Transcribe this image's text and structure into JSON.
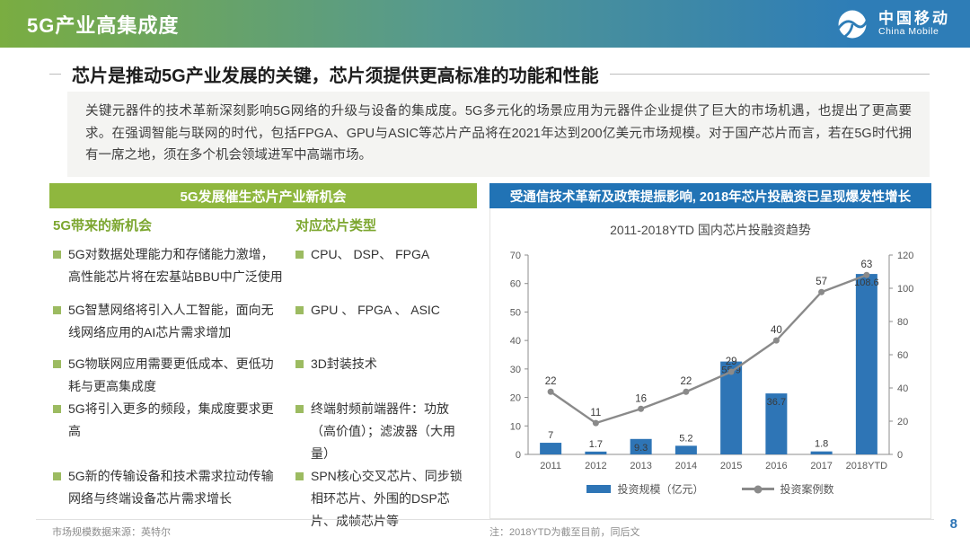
{
  "header": {
    "title": "5G产业高集成度",
    "logo": {
      "cn": "中国移动",
      "en": "China Mobile"
    }
  },
  "key_message": {
    "heading": "芯片是推动5G产业发展的关键，芯片须提供更高标准的功能和性能",
    "body": "关键元器件的技术革新深刻影响5G网络的升级与设备的集成度。5G多元化的场景应用为元器件企业提供了巨大的市场机遇，也提出了更高要求。在强调智能与联网的时代，包括FPGA、GPU与ASIC等芯片产品将在2021年达到200亿美元市场规模。对于国产芯片而言，若在5G时代拥有一席之地，须在多个机会领域进军中高端市场。"
  },
  "left_panel": {
    "title": "5G发展催生芯片产业新机会",
    "col1_title": "5G带来的新机会",
    "col2_title": "对应芯片类型",
    "rows": [
      {
        "opportunity": "5G对数据处理能力和存储能力激增，高性能芯片将在宏基站BBU中广泛使用",
        "chip": "CPU、 DSP、 FPGA"
      },
      {
        "opportunity": "5G智慧网络将引入人工智能，面向无线网络应用的AI芯片需求增加",
        "chip": "GPU 、 FPGA 、 ASIC"
      },
      {
        "opportunity": "5G物联网应用需要更低成本、更低功耗与更高集成度",
        "chip": "3D封装技术"
      },
      {
        "opportunity": "5G将引入更多的频段，集成度要求更高",
        "chip": "终端射频前端器件：功放（高价值）；滤波器（大用量）"
      },
      {
        "opportunity": "5G新的传输设备和技术需求拉动传输网络与终端设备芯片需求增长",
        "chip": "SPN核心交叉芯片、同步锁相环芯片、外围的DSP芯片、成帧芯片等"
      }
    ],
    "footnote": "市场规模数据来源：英特尔"
  },
  "right_panel": {
    "title": "受通信技术革新及政策提振影响, 2018年芯片投融资已呈现爆发性增长",
    "note": "注：2018YTD为截至目前，同后文"
  },
  "chart_data": {
    "type": "bar",
    "subtype": "combo-bar-line",
    "title": "2011-2018YTD 国内芯片投融资趋势",
    "categories": [
      "2011",
      "2012",
      "2013",
      "2014",
      "2015",
      "2016",
      "2017",
      "2018YTD"
    ],
    "series": [
      {
        "name": "投资规模（亿元）",
        "type": "bar",
        "axis": "right",
        "values": [
          7,
          1.7,
          9.3,
          5.2,
          55.9,
          36.7,
          1.8,
          108.6
        ],
        "color": "#2e75b6"
      },
      {
        "name": "投资案例数",
        "type": "line",
        "axis": "left",
        "values": [
          22,
          11,
          16,
          22,
          29,
          40,
          57,
          63
        ],
        "color": "#8a8a8a"
      }
    ],
    "left_axis": {
      "min": 0,
      "max": 70,
      "ticks": [
        0,
        10,
        20,
        30,
        40,
        50,
        60,
        70
      ]
    },
    "right_axis": {
      "min": 0,
      "max": 120,
      "ticks": [
        0,
        20,
        40,
        60,
        80,
        100,
        120
      ]
    },
    "grid": false,
    "legend_position": "bottom"
  },
  "page_number": "8",
  "colors": {
    "header_gradient_start": "#7aad41",
    "header_gradient_end": "#2e7db7",
    "panel_green": "#8fb73e",
    "panel_blue": "#2173b5",
    "bar_blue": "#2e75b6",
    "line_gray": "#8a8a8a",
    "page_number_blue": "#2e75b6"
  }
}
